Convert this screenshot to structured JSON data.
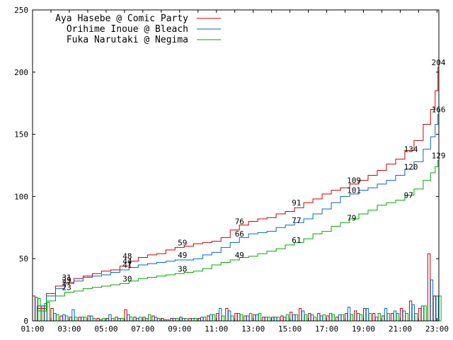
{
  "chart_data": {
    "type": "line",
    "ylim": [
      0,
      250
    ],
    "y_ticks": [
      0,
      50,
      100,
      150,
      200,
      250
    ],
    "x_ticks": [
      "01:00",
      "03:00",
      "05:00",
      "07:00",
      "09:00",
      "11:00",
      "13:00",
      "15:00",
      "17:00",
      "19:00",
      "21:00",
      "23:00"
    ],
    "x_range_hours": [
      1,
      23.1
    ],
    "grid": false,
    "legend_position": "top-left",
    "series": [
      {
        "name": "Aya Hasebe @ Comic Party",
        "color": "#cc0000",
        "points": [
          [
            1.0,
            0
          ],
          [
            1.5,
            10
          ],
          [
            2.0,
            22
          ],
          [
            2.5,
            28
          ],
          [
            3.0,
            31
          ],
          [
            3.5,
            34
          ],
          [
            4.0,
            36
          ],
          [
            4.5,
            38
          ],
          [
            5.0,
            40
          ],
          [
            5.5,
            41
          ],
          [
            6.0,
            44
          ],
          [
            6.5,
            48
          ],
          [
            7.0,
            51
          ],
          [
            7.5,
            53
          ],
          [
            8.0,
            54
          ],
          [
            8.5,
            57
          ],
          [
            9.0,
            59
          ],
          [
            9.5,
            60
          ],
          [
            10.0,
            62
          ],
          [
            10.5,
            63
          ],
          [
            11.0,
            64
          ],
          [
            11.5,
            67
          ],
          [
            12.0,
            73
          ],
          [
            12.5,
            77
          ],
          [
            13.0,
            80
          ],
          [
            13.5,
            82
          ],
          [
            14.0,
            83
          ],
          [
            14.5,
            86
          ],
          [
            15.0,
            88
          ],
          [
            15.5,
            91
          ],
          [
            16.0,
            95
          ],
          [
            16.5,
            98
          ],
          [
            17.0,
            102
          ],
          [
            17.5,
            105
          ],
          [
            18.0,
            107
          ],
          [
            18.5,
            110
          ],
          [
            19.0,
            113
          ],
          [
            19.5,
            117
          ],
          [
            20.0,
            121
          ],
          [
            20.5,
            126
          ],
          [
            21.0,
            130
          ],
          [
            21.5,
            137
          ],
          [
            22.0,
            145
          ],
          [
            22.5,
            158
          ],
          [
            22.8,
            170
          ],
          [
            23.0,
            185
          ],
          [
            23.1,
            204
          ]
        ]
      },
      {
        "name": "Orihime Inoue @ Bleach",
        "color": "#0066cc",
        "points": [
          [
            1.0,
            0
          ],
          [
            1.5,
            12
          ],
          [
            2.0,
            20
          ],
          [
            2.5,
            26
          ],
          [
            3.0,
            30
          ],
          [
            3.5,
            32
          ],
          [
            4.0,
            35
          ],
          [
            4.5,
            36
          ],
          [
            5.0,
            37
          ],
          [
            5.5,
            39
          ],
          [
            6.0,
            41
          ],
          [
            6.5,
            43
          ],
          [
            7.0,
            45
          ],
          [
            7.5,
            46
          ],
          [
            8.0,
            47
          ],
          [
            8.5,
            48
          ],
          [
            9.0,
            49
          ],
          [
            9.5,
            49
          ],
          [
            10.0,
            50
          ],
          [
            10.5,
            53
          ],
          [
            11.0,
            55
          ],
          [
            11.5,
            59
          ],
          [
            12.0,
            63
          ],
          [
            12.5,
            67
          ],
          [
            13.0,
            70
          ],
          [
            13.5,
            71
          ],
          [
            14.0,
            72
          ],
          [
            14.5,
            75
          ],
          [
            15.0,
            77
          ],
          [
            15.5,
            79
          ],
          [
            16.0,
            82
          ],
          [
            16.5,
            86
          ],
          [
            17.0,
            90
          ],
          [
            17.5,
            95
          ],
          [
            18.0,
            100
          ],
          [
            18.5,
            102
          ],
          [
            19.0,
            105
          ],
          [
            19.5,
            107
          ],
          [
            20.0,
            110
          ],
          [
            20.5,
            113
          ],
          [
            21.0,
            117
          ],
          [
            21.5,
            122
          ],
          [
            22.0,
            128
          ],
          [
            22.5,
            138
          ],
          [
            22.8,
            148
          ],
          [
            23.0,
            158
          ],
          [
            23.1,
            166
          ]
        ]
      },
      {
        "name": "Fuka Narutaki @ Negima",
        "color": "#00aa00",
        "points": [
          [
            1.0,
            0
          ],
          [
            1.5,
            8
          ],
          [
            2.0,
            16
          ],
          [
            2.5,
            20
          ],
          [
            3.0,
            23
          ],
          [
            3.5,
            24
          ],
          [
            4.0,
            26
          ],
          [
            4.5,
            27
          ],
          [
            5.0,
            28
          ],
          [
            5.5,
            29
          ],
          [
            6.0,
            30
          ],
          [
            6.5,
            32
          ],
          [
            7.0,
            34
          ],
          [
            7.5,
            35
          ],
          [
            8.0,
            36
          ],
          [
            8.5,
            37
          ],
          [
            9.0,
            38
          ],
          [
            9.5,
            39
          ],
          [
            10.0,
            40
          ],
          [
            10.5,
            42
          ],
          [
            11.0,
            45
          ],
          [
            11.5,
            47
          ],
          [
            12.0,
            49
          ],
          [
            12.5,
            51
          ],
          [
            13.0,
            52
          ],
          [
            13.5,
            54
          ],
          [
            14.0,
            56
          ],
          [
            14.5,
            58
          ],
          [
            15.0,
            61
          ],
          [
            15.5,
            63
          ],
          [
            16.0,
            66
          ],
          [
            16.5,
            70
          ],
          [
            17.0,
            72
          ],
          [
            17.5,
            76
          ],
          [
            18.0,
            79
          ],
          [
            18.5,
            82
          ],
          [
            19.0,
            86
          ],
          [
            19.5,
            89
          ],
          [
            20.0,
            93
          ],
          [
            20.5,
            95
          ],
          [
            21.0,
            97
          ],
          [
            21.5,
            101
          ],
          [
            22.0,
            106
          ],
          [
            22.5,
            113
          ],
          [
            22.8,
            119
          ],
          [
            23.0,
            124
          ],
          [
            23.1,
            129
          ]
        ]
      }
    ],
    "histogram": {
      "bin_start_hours": [
        1.0,
        1.5,
        2.0,
        2.5,
        3.0,
        3.5,
        4.0,
        4.5,
        5.0,
        5.5,
        6.0,
        6.5,
        7.0,
        7.5,
        8.0,
        8.5,
        9.0,
        9.5,
        10.0,
        10.5,
        11.0,
        11.5,
        12.0,
        12.5,
        13.0,
        13.5,
        14.0,
        14.5,
        15.0,
        15.5,
        16.0,
        16.5,
        17.0,
        17.5,
        18.0,
        18.5,
        19.0,
        19.5,
        20.0,
        20.5,
        21.0,
        21.5,
        22.0,
        22.5,
        22.8
      ],
      "red": [
        20,
        12,
        10,
        4,
        3,
        3,
        4,
        2,
        2,
        3,
        9,
        3,
        3,
        4,
        2,
        2,
        3,
        2,
        2,
        4,
        6,
        10,
        6,
        4,
        5,
        3,
        3,
        4,
        7,
        10,
        6,
        6,
        4,
        3,
        6,
        8,
        10,
        6,
        4,
        6,
        10,
        16,
        10,
        54,
        20
      ],
      "blue": [
        19,
        14,
        6,
        5,
        9,
        3,
        4,
        1,
        5,
        2,
        5,
        2,
        2,
        3,
        1,
        2,
        2,
        2,
        3,
        5,
        10,
        8,
        6,
        4,
        5,
        3,
        3,
        3,
        5,
        8,
        5,
        4,
        6,
        5,
        11,
        6,
        10,
        3,
        10,
        8,
        8,
        13,
        12,
        33,
        20
      ],
      "green": [
        18,
        15,
        5,
        4,
        3,
        3,
        2,
        2,
        2,
        2,
        3,
        3,
        5,
        2,
        1,
        2,
        2,
        2,
        3,
        5,
        4,
        4,
        5,
        6,
        6,
        3,
        3,
        5,
        5,
        5,
        3,
        5,
        5,
        5,
        5,
        5,
        6,
        6,
        6,
        6,
        6,
        6,
        12,
        20,
        20
      ]
    },
    "annotations": [
      {
        "series": 0,
        "x": 2.6,
        "y": 31,
        "text": "31"
      },
      {
        "series": 1,
        "x": 2.6,
        "y": 27,
        "text": "27"
      },
      {
        "series": 0,
        "x": 2.6,
        "y": 29,
        "text": "29"
      },
      {
        "series": 2,
        "x": 2.6,
        "y": 23,
        "text": "23"
      },
      {
        "series": 0,
        "x": 5.9,
        "y": 48,
        "text": "48"
      },
      {
        "series": 1,
        "x": 5.9,
        "y": 44,
        "text": "44"
      },
      {
        "series": 1,
        "x": 5.9,
        "y": 41,
        "text": "41"
      },
      {
        "series": 2,
        "x": 5.9,
        "y": 30,
        "text": "30"
      },
      {
        "series": 0,
        "x": 8.9,
        "y": 59,
        "text": "59"
      },
      {
        "series": 1,
        "x": 8.9,
        "y": 49,
        "text": "49"
      },
      {
        "series": 2,
        "x": 8.9,
        "y": 38,
        "text": "38"
      },
      {
        "series": 0,
        "x": 12.0,
        "y": 76,
        "text": "76"
      },
      {
        "series": 1,
        "x": 12.0,
        "y": 66,
        "text": "66"
      },
      {
        "series": 2,
        "x": 12.0,
        "y": 49,
        "text": "49"
      },
      {
        "series": 0,
        "x": 15.1,
        "y": 91,
        "text": "91"
      },
      {
        "series": 1,
        "x": 15.1,
        "y": 77,
        "text": "77"
      },
      {
        "series": 2,
        "x": 15.1,
        "y": 61,
        "text": "61"
      },
      {
        "series": 0,
        "x": 18.1,
        "y": 109,
        "text": "109"
      },
      {
        "series": 1,
        "x": 18.1,
        "y": 101,
        "text": "101"
      },
      {
        "series": 2,
        "x": 18.1,
        "y": 79,
        "text": "79"
      },
      {
        "series": 0,
        "x": 21.2,
        "y": 134,
        "text": "134"
      },
      {
        "series": 1,
        "x": 21.2,
        "y": 120,
        "text": "120"
      },
      {
        "series": 2,
        "x": 21.2,
        "y": 97,
        "text": "97"
      },
      {
        "series": 0,
        "x": 22.7,
        "y": 204,
        "text": "204"
      },
      {
        "series": 1,
        "x": 22.7,
        "y": 166,
        "text": "166"
      },
      {
        "series": 2,
        "x": 22.7,
        "y": 129,
        "text": "129"
      }
    ]
  }
}
